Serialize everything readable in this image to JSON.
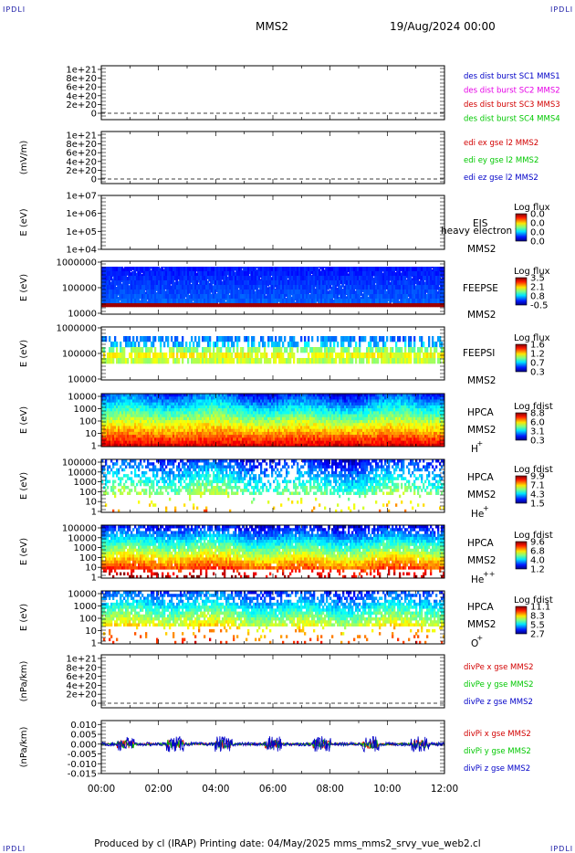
{
  "header": {
    "corner_tl": "IPDLI",
    "corner_tr": "IPDLI",
    "corner_bl": "IPDLI",
    "corner_br": "IPDLI",
    "spacecraft": "MMS2",
    "datetime": "19/Aug/2024 00:00"
  },
  "footer": {
    "text": "Produced by cl (IRAP)   Printing date: 04/May/2025   mms_mms2_srvy_vue_web2.cl"
  },
  "colors": {
    "des1": "#0000c8",
    "des2": "#e600e6",
    "des3": "#d20000",
    "des4": "#00c800",
    "red": "#d20000",
    "green": "#00b400",
    "blue": "#0000c8"
  },
  "chart_data": [
    {
      "type": "line",
      "ylabel": "",
      "yticks": [
        "1e+21",
        "8e+20",
        "6e+20",
        "4e+20",
        "2e+20",
        "0"
      ],
      "legend": [
        {
          "text": "des dist burst SC1 MMS1",
          "color": "#0000c8"
        },
        {
          "text": "des dist burst SC2 MMS2",
          "color": "#e600e6"
        },
        {
          "text": "des dist burst SC3 MMS3",
          "color": "#d20000"
        },
        {
          "text": "des dist burst SC4 MMS4",
          "color": "#00c800"
        }
      ]
    },
    {
      "type": "line",
      "ylabel": "(mV/m)",
      "yticks": [
        "1e+21",
        "8e+20",
        "6e+20",
        "4e+20",
        "2e+20",
        "0"
      ],
      "legend": [
        {
          "text": "edi ex gse l2 MMS2",
          "color": "#d20000"
        },
        {
          "text": "edi ey gse l2 MMS2",
          "color": "#00c800"
        },
        {
          "text": "edi ez gse l2 MMS2",
          "color": "#0000c8"
        }
      ]
    },
    {
      "type": "heatmap",
      "ylabel": "E (eV)",
      "yticks": [
        "1e+07",
        "1e+06",
        "1e+05",
        "1e+04"
      ],
      "labels": [
        "EIS",
        "MMS2"
      ],
      "overlay": "heavy electron to",
      "cbar_title": "Log flux",
      "cbar_ticks": [
        "0.0",
        "0.0",
        "0.0",
        "0.0"
      ]
    },
    {
      "type": "heatmap",
      "ylabel": "E (eV)",
      "yticks": [
        "1000000",
        "100000",
        "10000"
      ],
      "labels": [
        "FEEPSE",
        "MMS2"
      ],
      "cbar_title": "Log flux",
      "cbar_ticks": [
        "3.5",
        "2.1",
        "0.8",
        "-0.5"
      ]
    },
    {
      "type": "heatmap",
      "ylabel": "E (eV)",
      "yticks": [
        "1000000",
        "100000",
        "10000"
      ],
      "labels": [
        "FEEPSI",
        "MMS2"
      ],
      "cbar_title": "Log flux",
      "cbar_ticks": [
        "1.6",
        "1.2",
        "0.7",
        "0.3"
      ]
    },
    {
      "type": "heatmap",
      "ylabel": "E (eV)",
      "yticks": [
        "10000",
        "1000",
        "100",
        "10",
        "1"
      ],
      "labels": [
        "HPCA",
        "MMS2",
        "H",
        "+"
      ],
      "cbar_title": "Log fdist",
      "cbar_ticks": [
        "8.8",
        "6.0",
        "3.1",
        "0.3"
      ]
    },
    {
      "type": "heatmap",
      "ylabel": "E (eV)",
      "yticks": [
        "100000",
        "10000",
        "1000",
        "100",
        "10",
        "1"
      ],
      "labels": [
        "HPCA",
        "MMS2",
        "He",
        "+"
      ],
      "cbar_title": "Log fdist",
      "cbar_ticks": [
        "9.9",
        "7.1",
        "4.3",
        "1.5"
      ]
    },
    {
      "type": "heatmap",
      "ylabel": "E (eV)",
      "yticks": [
        "100000",
        "10000",
        "1000",
        "100",
        "10",
        "1"
      ],
      "labels": [
        "HPCA",
        "MMS2",
        "He",
        "++"
      ],
      "cbar_title": "Log fdist",
      "cbar_ticks": [
        "9.6",
        "6.8",
        "4.0",
        "1.2"
      ]
    },
    {
      "type": "heatmap",
      "ylabel": "E (eV)",
      "yticks": [
        "10000",
        "1000",
        "100",
        "10",
        "1"
      ],
      "labels": [
        "HPCA",
        "MMS2",
        "O",
        "+"
      ],
      "cbar_title": "Log fdist",
      "cbar_ticks": [
        "11.1",
        "8.3",
        "5.5",
        "2.7"
      ]
    },
    {
      "type": "line",
      "ylabel": "(nPa/km)",
      "yticks": [
        "1e+21",
        "8e+20",
        "6e+20",
        "4e+20",
        "2e+20",
        "0"
      ],
      "legend": [
        {
          "text": "divPe x gse MMS2",
          "color": "#d20000"
        },
        {
          "text": "divPe y gse MMS2",
          "color": "#00c800"
        },
        {
          "text": "divPe z gse MMS2",
          "color": "#0000c8"
        }
      ]
    },
    {
      "type": "line",
      "ylabel": "(nPa/km)",
      "yticks": [
        "0.010",
        "0.005",
        "0.000",
        "-0.005",
        "-0.010",
        "-0.015"
      ],
      "ylim": [
        -0.015,
        0.012
      ],
      "legend": [
        {
          "text": "divPi x gse MMS2",
          "color": "#d20000"
        },
        {
          "text": "divPi y gse MMS2",
          "color": "#00c800"
        },
        {
          "text": "divPi z gse MMS2",
          "color": "#0000c8"
        }
      ]
    }
  ],
  "xaxis": {
    "ticks": [
      "00:00",
      "02:00",
      "04:00",
      "06:00",
      "08:00",
      "10:00",
      "12:00"
    ]
  }
}
